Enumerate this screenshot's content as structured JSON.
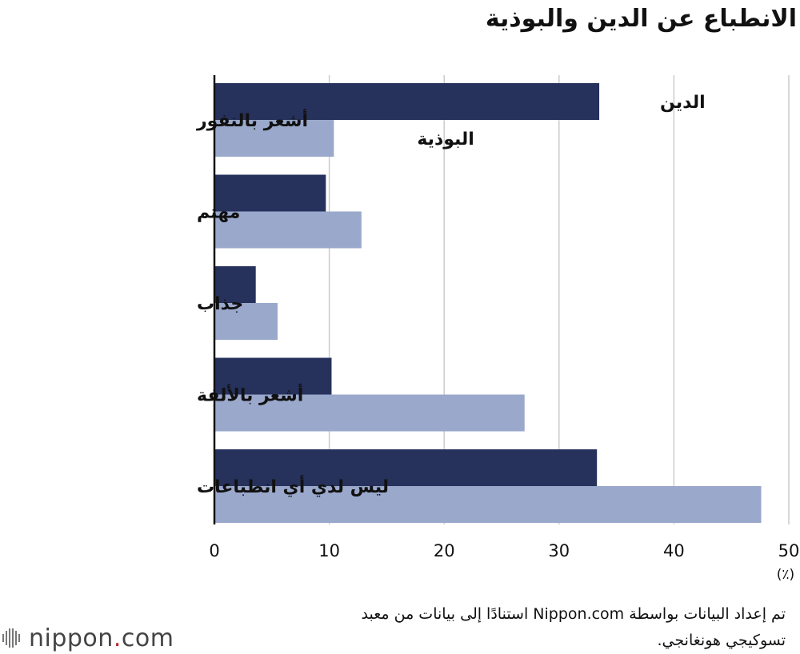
{
  "title": "الانطباع عن الدين والبوذية",
  "source_line1": "تم إعداد البيانات بواسطة Nippon.com استنادًا إلى بيانات من معبد",
  "source_line2": "تسوكيجي هونغانجي.",
  "logo": {
    "name": "nippon",
    "dot": ".",
    "suffix": "com"
  },
  "colors": {
    "religion": "#26325c",
    "buddhism": "#9aa8cb",
    "grid": "#cccccc",
    "axis": "#111111"
  },
  "chart_data": {
    "type": "bar",
    "orientation": "horizontal",
    "categories": [
      "أشعر بالنفور",
      "مهتم",
      "جذاب",
      "أشعر بالألفة",
      "ليس لدي أي انطباعات"
    ],
    "series": [
      {
        "name": "الدين",
        "values": [
          33.5,
          9.7,
          3.6,
          10.2,
          33.3
        ]
      },
      {
        "name": "البوذية",
        "values": [
          10.4,
          12.8,
          5.5,
          27.0,
          47.6
        ]
      }
    ],
    "xlim": [
      0,
      50
    ],
    "xticks": [
      "0",
      "10",
      "20",
      "30",
      "40",
      "50"
    ],
    "xunit": "(٪)",
    "grid": true,
    "legend": "inline labels beside first bars"
  }
}
